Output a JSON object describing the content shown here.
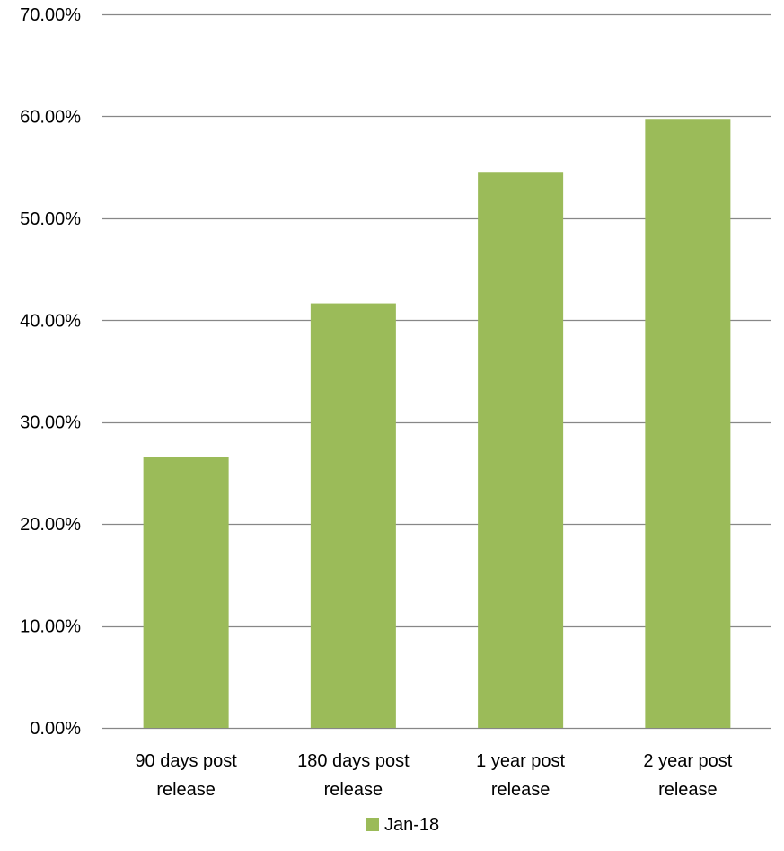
{
  "chart_data": {
    "type": "bar",
    "title": "",
    "xlabel": "",
    "ylabel": "",
    "categories": [
      [
        "90 days post",
        "release"
      ],
      [
        "180 days post",
        "release"
      ],
      [
        "1 year post",
        "release"
      ],
      [
        "2 year post",
        "release"
      ]
    ],
    "series": [
      {
        "name": "Jan-18",
        "values": [
          0.2655,
          0.4165,
          0.5455,
          0.5975
        ],
        "color": "#9BBB59"
      }
    ],
    "ylim": [
      0,
      0.7
    ],
    "yticks": [
      0,
      0.1,
      0.2,
      0.3,
      0.4,
      0.5,
      0.6,
      0.7
    ],
    "ytick_labels": [
      "0.00%",
      "10.00%",
      "20.00%",
      "30.00%",
      "40.00%",
      "50.00%",
      "60.00%",
      "70.00%"
    ],
    "grid": true,
    "gridline_color": "#878787",
    "legend": {
      "position": "bottom"
    }
  }
}
